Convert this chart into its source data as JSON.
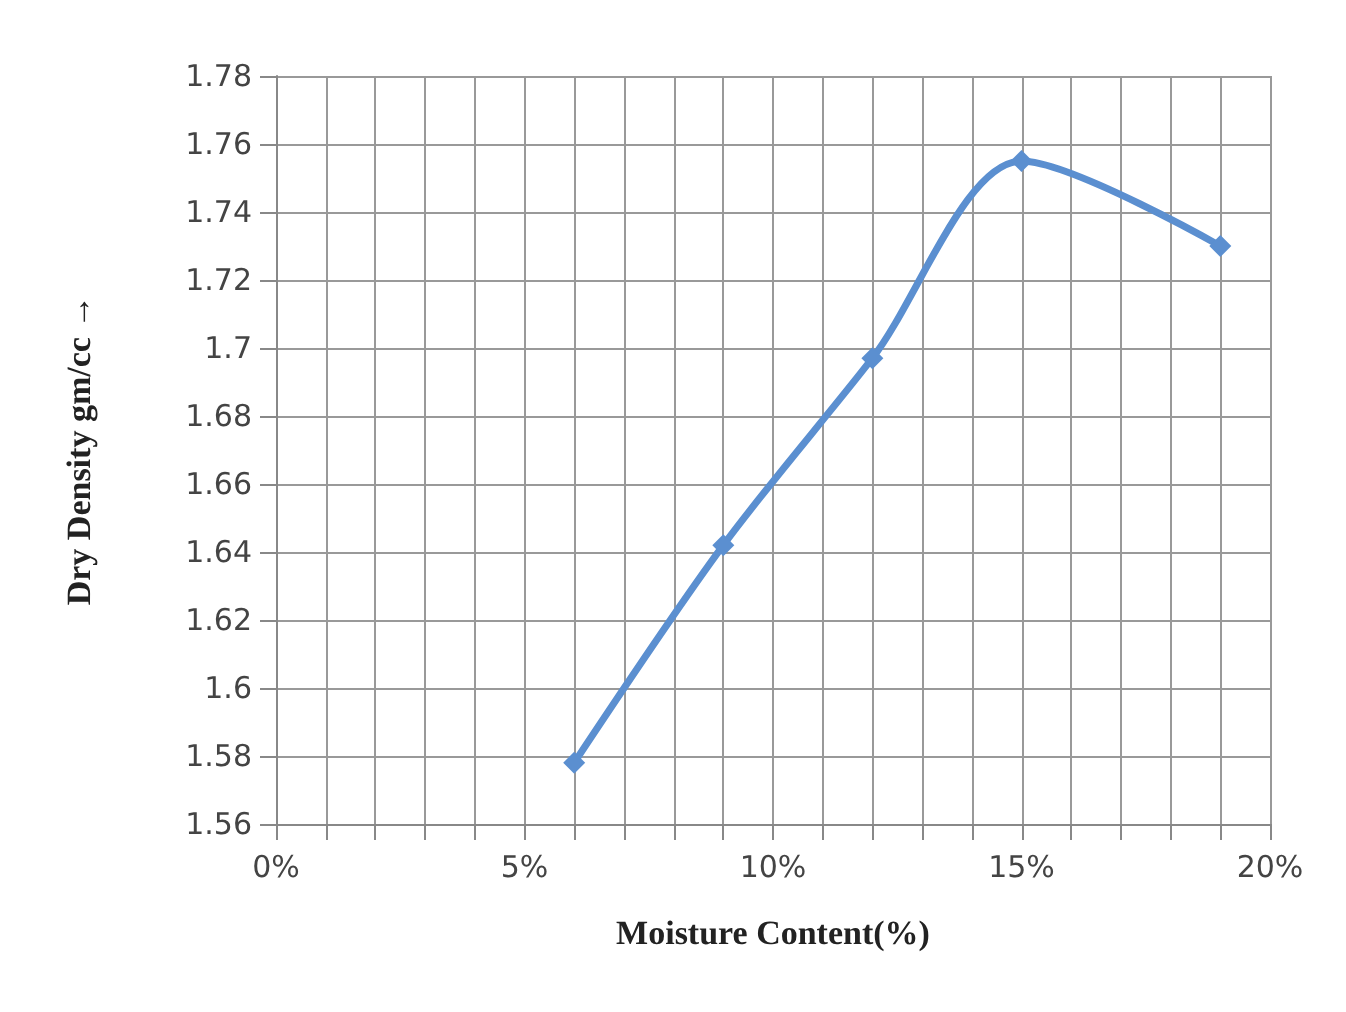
{
  "chart_data": {
    "type": "line",
    "xlabel": "Moisture Content(%)",
    "ylabel": "Dry Density gm/cc →",
    "x": [
      6,
      9,
      12,
      15,
      19
    ],
    "series": [
      {
        "color": "#5b8fd0",
        "values": [
          1.578,
          1.642,
          1.697,
          1.755,
          1.73
        ]
      }
    ],
    "xlim": [
      0,
      20
    ],
    "xticks": [
      {
        "value": 0,
        "label": "0%"
      },
      {
        "value": 1,
        "label": null
      },
      {
        "value": 2,
        "label": null
      },
      {
        "value": 3,
        "label": null
      },
      {
        "value": 4,
        "label": null
      },
      {
        "value": 5,
        "label": "5%"
      },
      {
        "value": 6,
        "label": null
      },
      {
        "value": 7,
        "label": null
      },
      {
        "value": 8,
        "label": null
      },
      {
        "value": 9,
        "label": null
      },
      {
        "value": 10,
        "label": "10%"
      },
      {
        "value": 11,
        "label": null
      },
      {
        "value": 12,
        "label": null
      },
      {
        "value": 13,
        "label": null
      },
      {
        "value": 14,
        "label": null
      },
      {
        "value": 15,
        "label": "15%"
      },
      {
        "value": 16,
        "label": null
      },
      {
        "value": 17,
        "label": null
      },
      {
        "value": 18,
        "label": null
      },
      {
        "value": 19,
        "label": null
      },
      {
        "value": 20,
        "label": "20%"
      }
    ],
    "ylim": [
      1.56,
      1.78
    ],
    "yticks": [
      1.56,
      1.58,
      1.6,
      1.62,
      1.64,
      1.66,
      1.68,
      1.7,
      1.72,
      1.74,
      1.76,
      1.78
    ],
    "grid": true,
    "marker": "diamond",
    "line_style": "solid"
  }
}
